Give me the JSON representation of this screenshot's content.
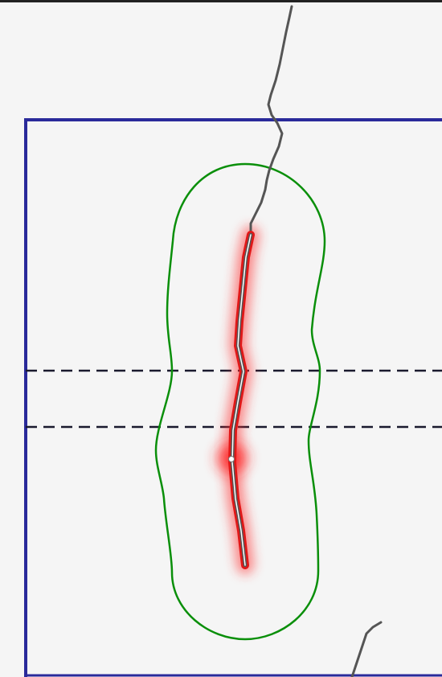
{
  "diagram": {
    "colors": {
      "background": "#f5f5f5",
      "frame_border": "#2a2a9a",
      "buffer_outline": "#0a8f0a",
      "dashed_band": "#1a1a2e",
      "path_stroke": "#555555",
      "path_highlight": "#e01818",
      "path_glow": "#ff2a2a"
    },
    "elements": [
      "rectangular-frame",
      "dashed-horizontal-band",
      "green-buffer-outline",
      "red-highlighted-segment",
      "gray-line-feature"
    ]
  }
}
